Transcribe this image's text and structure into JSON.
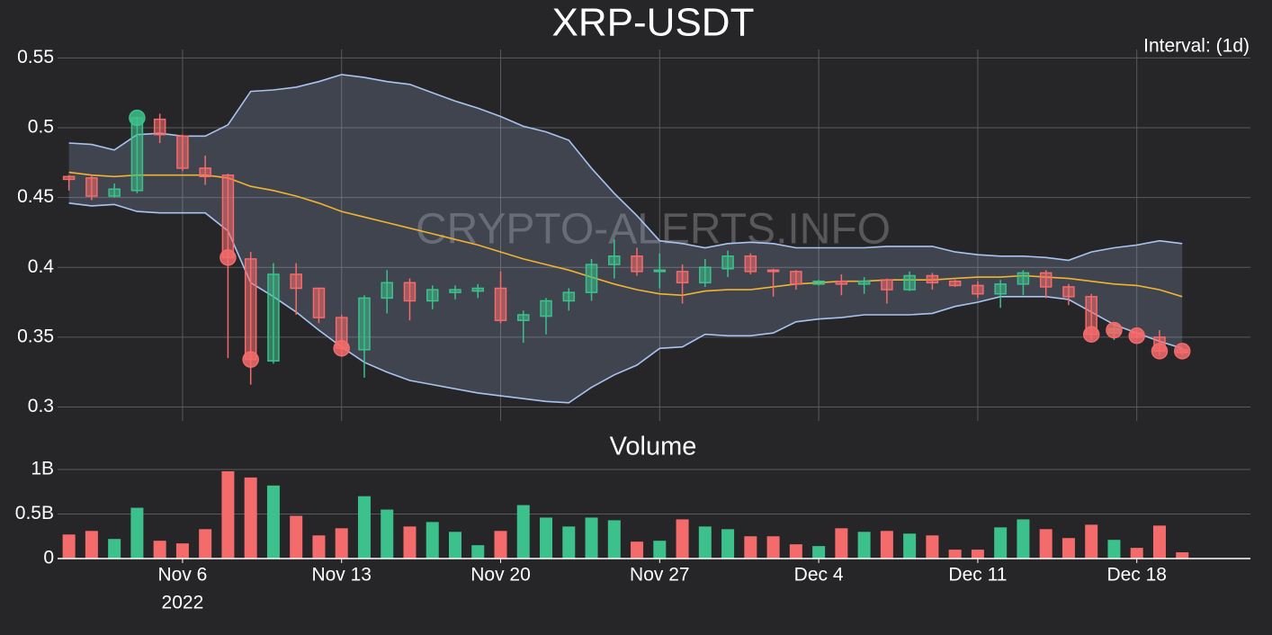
{
  "chart_data": [
    {
      "type": "candlestick",
      "title": "XRP-USDT",
      "annotation": "Interval: (1d)",
      "watermark": "CRYPTO-ALERTS.INFO",
      "x": [
        "2022-11-01",
        "2022-11-02",
        "2022-11-03",
        "2022-11-04",
        "2022-11-05",
        "2022-11-06",
        "2022-11-07",
        "2022-11-08",
        "2022-11-09",
        "2022-11-10",
        "2022-11-11",
        "2022-11-12",
        "2022-11-13",
        "2022-11-14",
        "2022-11-15",
        "2022-11-16",
        "2022-11-17",
        "2022-11-18",
        "2022-11-19",
        "2022-11-20",
        "2022-11-21",
        "2022-11-22",
        "2022-11-23",
        "2022-11-24",
        "2022-11-25",
        "2022-11-26",
        "2022-11-27",
        "2022-11-28",
        "2022-11-29",
        "2022-11-30",
        "2022-12-01",
        "2022-12-02",
        "2022-12-03",
        "2022-12-04",
        "2022-12-05",
        "2022-12-06",
        "2022-12-07",
        "2022-12-08",
        "2022-12-09",
        "2022-12-10",
        "2022-12-11",
        "2022-12-12",
        "2022-12-13",
        "2022-12-14",
        "2022-12-15",
        "2022-12-16",
        "2022-12-17",
        "2022-12-18",
        "2022-12-19",
        "2022-12-20"
      ],
      "open": [
        0.465,
        0.464,
        0.451,
        0.455,
        0.506,
        0.494,
        0.471,
        0.466,
        0.406,
        0.333,
        0.395,
        0.385,
        0.364,
        0.341,
        0.378,
        0.389,
        0.376,
        0.382,
        0.383,
        0.385,
        0.362,
        0.365,
        0.376,
        0.382,
        0.402,
        0.408,
        0.397,
        0.397,
        0.389,
        0.399,
        0.408,
        0.398,
        0.397,
        0.388,
        0.39,
        0.388,
        0.391,
        0.384,
        0.394,
        0.39,
        0.387,
        0.381,
        0.388,
        0.396,
        0.386,
        0.379,
        0.353,
        0.353,
        0.35,
        0.341
      ],
      "high": [
        0.466,
        0.466,
        0.46,
        0.508,
        0.51,
        0.495,
        0.48,
        0.467,
        0.411,
        0.403,
        0.403,
        0.385,
        0.366,
        0.38,
        0.398,
        0.392,
        0.387,
        0.387,
        0.388,
        0.397,
        0.369,
        0.378,
        0.385,
        0.406,
        0.42,
        0.414,
        0.41,
        0.402,
        0.406,
        0.412,
        0.41,
        0.399,
        0.398,
        0.391,
        0.395,
        0.393,
        0.392,
        0.397,
        0.396,
        0.391,
        0.39,
        0.391,
        0.398,
        0.398,
        0.388,
        0.381,
        0.359,
        0.355,
        0.355,
        0.342
      ],
      "low": [
        0.455,
        0.448,
        0.45,
        0.453,
        0.489,
        0.469,
        0.459,
        0.335,
        0.316,
        0.331,
        0.366,
        0.36,
        0.337,
        0.321,
        0.367,
        0.362,
        0.37,
        0.377,
        0.378,
        0.36,
        0.346,
        0.352,
        0.369,
        0.376,
        0.392,
        0.394,
        0.385,
        0.374,
        0.386,
        0.393,
        0.395,
        0.379,
        0.384,
        0.387,
        0.38,
        0.381,
        0.374,
        0.383,
        0.384,
        0.386,
        0.378,
        0.371,
        0.38,
        0.378,
        0.373,
        0.348,
        0.348,
        0.349,
        0.337,
        0.337
      ],
      "close": [
        0.463,
        0.451,
        0.456,
        0.507,
        0.495,
        0.471,
        0.465,
        0.407,
        0.334,
        0.395,
        0.385,
        0.364,
        0.342,
        0.378,
        0.389,
        0.376,
        0.384,
        0.384,
        0.385,
        0.362,
        0.366,
        0.376,
        0.382,
        0.402,
        0.408,
        0.397,
        0.398,
        0.389,
        0.4,
        0.408,
        0.397,
        0.397,
        0.388,
        0.39,
        0.388,
        0.39,
        0.384,
        0.394,
        0.389,
        0.387,
        0.381,
        0.388,
        0.396,
        0.386,
        0.379,
        0.352,
        0.356,
        0.35,
        0.34,
        0.339
      ],
      "up_color": "#3cc18c",
      "down_color": "#f46b6b",
      "band": {
        "color": "#a9c4f0",
        "fill": "rgba(170,190,230,0.2)",
        "upper": [
          0.489,
          0.488,
          0.484,
          0.495,
          0.496,
          0.494,
          0.494,
          0.502,
          0.526,
          0.527,
          0.529,
          0.533,
          0.538,
          0.536,
          0.533,
          0.531,
          0.525,
          0.519,
          0.514,
          0.508,
          0.501,
          0.497,
          0.491,
          0.471,
          0.453,
          0.437,
          0.419,
          0.417,
          0.414,
          0.417,
          0.418,
          0.417,
          0.414,
          0.414,
          0.414,
          0.414,
          0.415,
          0.415,
          0.415,
          0.411,
          0.409,
          0.408,
          0.408,
          0.407,
          0.405,
          0.411,
          0.414,
          0.416,
          0.419,
          0.417
        ],
        "lower": [
          0.446,
          0.444,
          0.445,
          0.44,
          0.439,
          0.439,
          0.439,
          0.426,
          0.389,
          0.379,
          0.368,
          0.355,
          0.343,
          0.332,
          0.325,
          0.319,
          0.316,
          0.313,
          0.31,
          0.308,
          0.306,
          0.304,
          0.303,
          0.314,
          0.323,
          0.33,
          0.342,
          0.343,
          0.352,
          0.351,
          0.351,
          0.353,
          0.361,
          0.363,
          0.364,
          0.366,
          0.366,
          0.366,
          0.367,
          0.372,
          0.375,
          0.379,
          0.379,
          0.379,
          0.377,
          0.368,
          0.359,
          0.353,
          0.347,
          0.342
        ]
      },
      "middle": {
        "color": "#f0b432",
        "values": [
          0.468,
          0.466,
          0.465,
          0.466,
          0.466,
          0.466,
          0.466,
          0.464,
          0.458,
          0.455,
          0.451,
          0.446,
          0.44,
          0.436,
          0.432,
          0.428,
          0.424,
          0.42,
          0.416,
          0.411,
          0.406,
          0.402,
          0.398,
          0.393,
          0.388,
          0.384,
          0.381,
          0.38,
          0.383,
          0.384,
          0.384,
          0.386,
          0.388,
          0.389,
          0.39,
          0.39,
          0.391,
          0.391,
          0.391,
          0.392,
          0.393,
          0.393,
          0.394,
          0.393,
          0.392,
          0.39,
          0.388,
          0.387,
          0.384,
          0.379
        ]
      },
      "markers": {
        "x": [
          "2022-11-04",
          "2022-11-08",
          "2022-11-09",
          "2022-11-13",
          "2022-12-16",
          "2022-12-17",
          "2022-12-18",
          "2022-12-19",
          "2022-12-20"
        ],
        "values": [
          0.507,
          0.407,
          0.334,
          0.342,
          0.352,
          0.355,
          0.351,
          0.34,
          0.34
        ],
        "colors": [
          "#3cc18c",
          "#f46b6b",
          "#f46b6b",
          "#f46b6b",
          "#f46b6b",
          "#f46b6b",
          "#f46b6b",
          "#f46b6b",
          "#f46b6b"
        ]
      },
      "xlim": [
        "2022-10-31T12:00:00Z",
        "2022-12-23T00:00:00Z"
      ],
      "xticks": [
        "2022-11-06",
        "2022-11-13",
        "2022-11-20",
        "2022-11-27",
        "2022-12-04",
        "2022-12-11",
        "2022-12-18"
      ],
      "ylim": [
        0.29,
        0.556
      ],
      "yticks": [
        0.3,
        0.35,
        0.4,
        0.45,
        0.5,
        0.55
      ],
      "grid": true
    },
    {
      "type": "bar",
      "title": "Volume",
      "x": [
        "2022-11-01",
        "2022-11-02",
        "2022-11-03",
        "2022-11-04",
        "2022-11-05",
        "2022-11-06",
        "2022-11-07",
        "2022-11-08",
        "2022-11-09",
        "2022-11-10",
        "2022-11-11",
        "2022-11-12",
        "2022-11-13",
        "2022-11-14",
        "2022-11-15",
        "2022-11-16",
        "2022-11-17",
        "2022-11-18",
        "2022-11-19",
        "2022-11-20",
        "2022-11-21",
        "2022-11-22",
        "2022-11-23",
        "2022-11-24",
        "2022-11-25",
        "2022-11-26",
        "2022-11-27",
        "2022-11-28",
        "2022-11-29",
        "2022-11-30",
        "2022-12-01",
        "2022-12-02",
        "2022-12-03",
        "2022-12-04",
        "2022-12-05",
        "2022-12-06",
        "2022-12-07",
        "2022-12-08",
        "2022-12-09",
        "2022-12-10",
        "2022-12-11",
        "2022-12-12",
        "2022-12-13",
        "2022-12-14",
        "2022-12-15",
        "2022-12-16",
        "2022-12-17",
        "2022-12-18",
        "2022-12-19",
        "2022-12-20"
      ],
      "values": [
        270000000,
        310000000,
        220000000,
        570000000,
        200000000,
        170000000,
        330000000,
        980000000,
        910000000,
        820000000,
        480000000,
        260000000,
        340000000,
        700000000,
        550000000,
        360000000,
        410000000,
        300000000,
        150000000,
        310000000,
        600000000,
        460000000,
        360000000,
        460000000,
        430000000,
        190000000,
        200000000,
        440000000,
        360000000,
        330000000,
        250000000,
        250000000,
        160000000,
        140000000,
        340000000,
        300000000,
        310000000,
        280000000,
        260000000,
        100000000,
        100000000,
        350000000,
        440000000,
        330000000,
        230000000,
        380000000,
        210000000,
        120000000,
        370000000,
        70000000
      ],
      "colors": [
        "#f46b6b",
        "#f46b6b",
        "#3cc18c",
        "#3cc18c",
        "#f46b6b",
        "#f46b6b",
        "#f46b6b",
        "#f46b6b",
        "#f46b6b",
        "#3cc18c",
        "#f46b6b",
        "#f46b6b",
        "#f46b6b",
        "#3cc18c",
        "#3cc18c",
        "#f46b6b",
        "#3cc18c",
        "#3cc18c",
        "#3cc18c",
        "#f46b6b",
        "#3cc18c",
        "#3cc18c",
        "#3cc18c",
        "#3cc18c",
        "#3cc18c",
        "#f46b6b",
        "#3cc18c",
        "#f46b6b",
        "#3cc18c",
        "#3cc18c",
        "#f46b6b",
        "#f46b6b",
        "#f46b6b",
        "#3cc18c",
        "#f46b6b",
        "#3cc18c",
        "#f46b6b",
        "#3cc18c",
        "#f46b6b",
        "#f46b6b",
        "#f46b6b",
        "#3cc18c",
        "#3cc18c",
        "#f46b6b",
        "#f46b6b",
        "#f46b6b",
        "#3cc18c",
        "#f46b6b",
        "#f46b6b",
        "#f46b6b"
      ],
      "xlim": [
        "2022-10-31T12:00:00Z",
        "2022-12-23T00:00:00Z"
      ],
      "xticks": [
        {
          "value": "2022-11-06",
          "label": "Nov 6",
          "sublabel": "2022"
        },
        {
          "value": "2022-11-13",
          "label": "Nov 13"
        },
        {
          "value": "2022-11-20",
          "label": "Nov 20"
        },
        {
          "value": "2022-11-27",
          "label": "Nov 27"
        },
        {
          "value": "2022-12-04",
          "label": "Dec 4"
        },
        {
          "value": "2022-12-11",
          "label": "Dec 11"
        },
        {
          "value": "2022-12-18",
          "label": "Dec 18"
        }
      ],
      "ylim": [
        0,
        1020000000
      ],
      "yticks": [
        0,
        {
          "value": 500000000,
          "label": "0.5B"
        },
        {
          "value": 1000000000,
          "label": "1B"
        }
      ],
      "grid": true
    }
  ]
}
